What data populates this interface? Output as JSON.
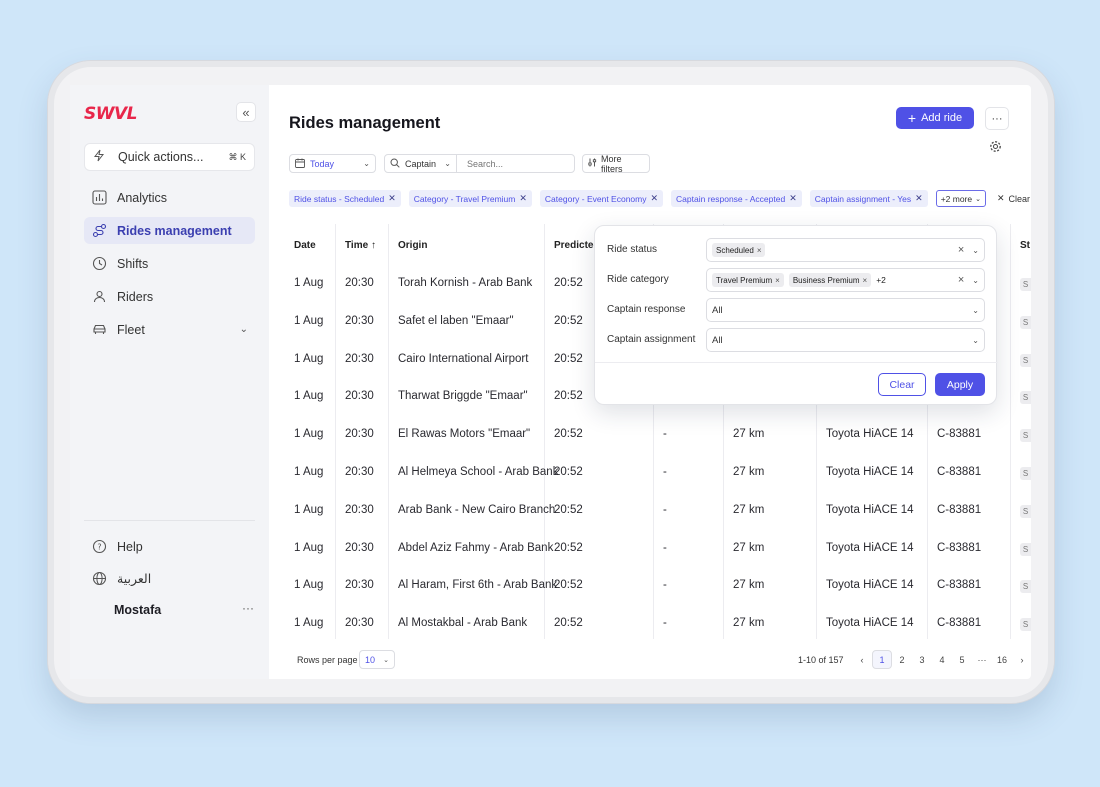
{
  "brand": {
    "logo_text": "SWVL",
    "accent": "#4f51e6",
    "logo_color": "#e8264a"
  },
  "sidebar": {
    "collapse_icon": "«",
    "quick_actions": {
      "label": "Quick actions...",
      "shortcut": "⌘ K"
    },
    "items": [
      {
        "label": "Analytics",
        "icon": "chart-icon"
      },
      {
        "label": "Rides management",
        "icon": "route-icon",
        "active": true
      },
      {
        "label": "Shifts",
        "icon": "clock-icon"
      },
      {
        "label": "Riders",
        "icon": "users-icon"
      },
      {
        "label": "Fleet",
        "icon": "car-icon"
      }
    ],
    "help_label": "Help",
    "language_label": "العربية",
    "user_name": "Mostafa",
    "user_more": "···"
  },
  "header": {
    "title": "Rides management",
    "add_label": "Add ride",
    "more_label": "···"
  },
  "toolbar": {
    "date_value": "Today",
    "captain_label": "Captain",
    "search_placeholder": "Search...",
    "more_filters_label": "More filters"
  },
  "chips": [
    "Ride status - Scheduled",
    "Category - Travel Premium",
    "Category - Event Economy",
    "Captain response - Accepted",
    "Captain assignment - Yes"
  ],
  "chips_more": "+2 more",
  "chips_clear": "Clear",
  "table": {
    "headers": [
      "Date",
      "Time ↑",
      "Origin",
      "Predicted",
      "St"
    ],
    "rows": [
      {
        "date": "1 Aug",
        "time": "20:30",
        "origin": "Torah Kornish - Arab Bank",
        "predicted": "20:52",
        "dash": "",
        "distance": "",
        "vehicle": "",
        "plate": "",
        "status": "S"
      },
      {
        "date": "1 Aug",
        "time": "20:30",
        "origin": "Safet el laben  \"Emaar\"",
        "predicted": "20:52",
        "dash": "",
        "distance": "",
        "vehicle": "",
        "plate": "",
        "status": "S"
      },
      {
        "date": "1 Aug",
        "time": "20:30",
        "origin": "Cairo International Airport",
        "predicted": "20:52",
        "dash": "",
        "distance": "",
        "vehicle": "",
        "plate": "",
        "status": "S"
      },
      {
        "date": "1 Aug",
        "time": "20:30",
        "origin": "Tharwat Briggde \"Emaar\"",
        "predicted": "20:52",
        "dash": "",
        "distance": "",
        "vehicle": "",
        "plate": "",
        "status": "S"
      },
      {
        "date": "1 Aug",
        "time": "20:30",
        "origin": "El Rawas Motors  \"Emaar\"",
        "predicted": "20:52",
        "dash": "-",
        "distance": "27 km",
        "vehicle": "Toyota HiACE 14",
        "plate": "C-83881",
        "status": "S"
      },
      {
        "date": "1 Aug",
        "time": "20:30",
        "origin": "Al Helmeya School - Arab Bank",
        "predicted": "20:52",
        "dash": "-",
        "distance": "27 km",
        "vehicle": "Toyota HiACE 14",
        "plate": "C-83881",
        "status": "S"
      },
      {
        "date": "1 Aug",
        "time": "20:30",
        "origin": "Arab Bank - New Cairo Branch",
        "predicted": "20:52",
        "dash": "-",
        "distance": "27 km",
        "vehicle": "Toyota HiACE 14",
        "plate": "C-83881",
        "status": "S"
      },
      {
        "date": "1 Aug",
        "time": "20:30",
        "origin": "Abdel Aziz Fahmy - Arab Bank",
        "predicted": "20:52",
        "dash": "-",
        "distance": "27 km",
        "vehicle": "Toyota HiACE 14",
        "plate": "C-83881",
        "status": "S"
      },
      {
        "date": "1 Aug",
        "time": "20:30",
        "origin": "Al Haram, First 6th - Arab Bank",
        "predicted": "20:52",
        "dash": "-",
        "distance": "27 km",
        "vehicle": "Toyota HiACE 14",
        "plate": "C-83881",
        "status": "S"
      },
      {
        "date": "1 Aug",
        "time": "20:30",
        "origin": "Al Mostakbal - Arab Bank",
        "predicted": "20:52",
        "dash": "-",
        "distance": "27 km",
        "vehicle": "Toyota HiACE 14",
        "plate": "C-83881",
        "status": "S"
      }
    ]
  },
  "pagination": {
    "rows_per_page_label": "Rows per page",
    "rows_per_page_value": "10",
    "range": "1-10 of 157",
    "prev": "‹",
    "next": "›",
    "pages": [
      "1",
      "2",
      "3",
      "4",
      "5",
      "···",
      "16"
    ],
    "current_page": "1"
  },
  "filter_popover": {
    "ride_status_label": "Ride status",
    "ride_status_tags": [
      "Scheduled"
    ],
    "ride_category_label": "Ride category",
    "ride_category_tags": [
      "Travel Premium",
      "Business Premium"
    ],
    "ride_category_extra": "+2",
    "captain_response_label": "Captain response",
    "captain_response_value": "All",
    "captain_assignment_label": "Captain assignment",
    "captain_assignment_value": "All",
    "clear_label": "Clear",
    "apply_label": "Apply"
  }
}
